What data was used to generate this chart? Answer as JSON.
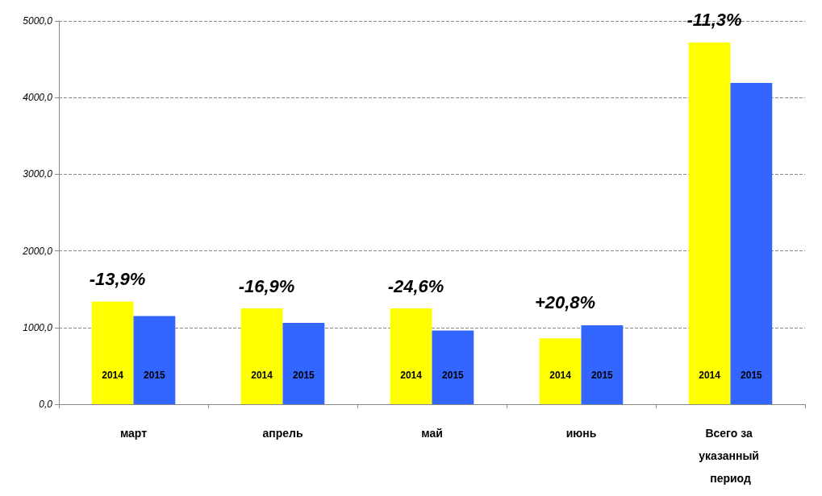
{
  "chart_data": {
    "type": "bar",
    "categories": [
      "март",
      "апрель",
      "май",
      "июнь",
      "Всего за указанный период"
    ],
    "series": [
      {
        "name": "2014",
        "color": "#ffff00",
        "values": [
          1340,
          1250,
          1250,
          860,
          4720
        ]
      },
      {
        "name": "2015",
        "color": "#3366ff",
        "values": [
          1150,
          1060,
          960,
          1030,
          4190
        ]
      }
    ],
    "ylim": [
      0,
      5000
    ],
    "yticks": [
      {
        "value": 0,
        "label": "0,0"
      },
      {
        "value": 1000,
        "label": "1000,0"
      },
      {
        "value": 2000,
        "label": "2000,0"
      },
      {
        "value": 3000,
        "label": "3000,0"
      },
      {
        "value": 4000,
        "label": "4000,0"
      },
      {
        "value": 5000,
        "label": "5000,0"
      }
    ],
    "grid": "y",
    "legend": false,
    "annotations": [
      "-13,9%",
      "-16,9%",
      "-24,6%",
      "+20,8%",
      "-11,3%"
    ]
  }
}
